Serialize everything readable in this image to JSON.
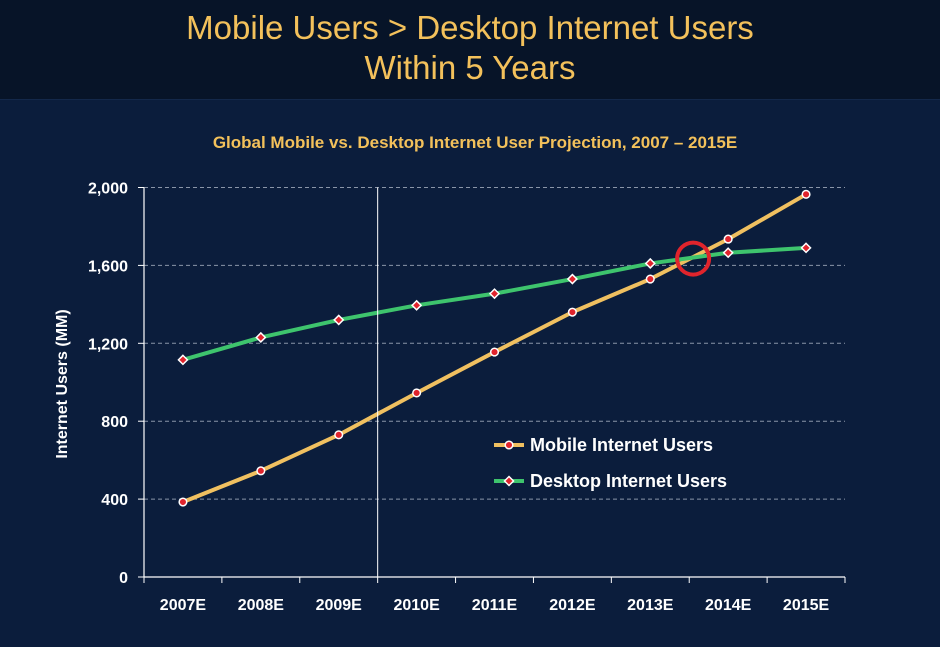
{
  "slide": {
    "title_line1": "Mobile Users > Desktop Internet Users",
    "title_line2": "Within 5 Years"
  },
  "colors": {
    "background": "#0b1d3c",
    "header": "#071428",
    "title": "#f3c15b",
    "mobile_line": "#f0c060",
    "desktop_line": "#3ec46d",
    "marker": "#e0242c",
    "highlight_circle": "#e0242c"
  },
  "chart_data": {
    "type": "line",
    "title": "Global Mobile vs. Desktop Internet User Projection, 2007 – 2015E",
    "xlabel": "",
    "ylabel": "Internet Users (MM)",
    "ylim": [
      0,
      2000
    ],
    "yticks": [
      0,
      400,
      800,
      1200,
      1600,
      2000
    ],
    "ytick_labels": [
      "0",
      "400",
      "800",
      "1,200",
      "1,600",
      "2,000"
    ],
    "categories": [
      "2007E",
      "2008E",
      "2009E",
      "2010E",
      "2011E",
      "2012E",
      "2013E",
      "2014E",
      "2015E"
    ],
    "grid": true,
    "legend_position": "center-right",
    "series": [
      {
        "name": "Mobile Internet Users",
        "marker": "circle",
        "values": [
          385,
          545,
          730,
          945,
          1155,
          1360,
          1530,
          1735,
          1965
        ]
      },
      {
        "name": "Desktop Internet Users",
        "marker": "diamond",
        "values": [
          1115,
          1230,
          1320,
          1395,
          1455,
          1530,
          1610,
          1665,
          1690
        ]
      }
    ],
    "annotations": [
      {
        "type": "vertical-divider",
        "between": [
          "2009E",
          "2010E"
        ]
      },
      {
        "type": "highlight-circle",
        "label": "crossover",
        "x_index": 6.55,
        "value": 1635
      }
    ]
  }
}
